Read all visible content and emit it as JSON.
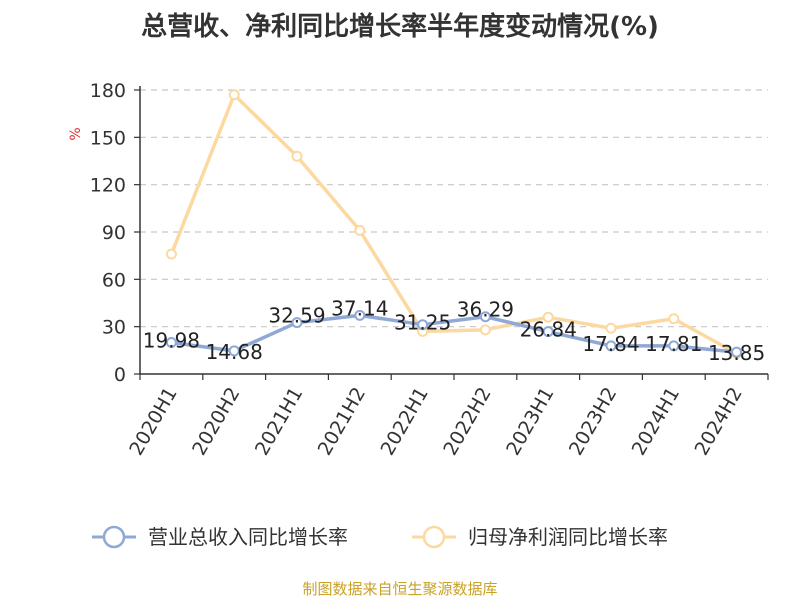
{
  "chart_data": {
    "type": "line",
    "title": "总营收、净利同比增长率半年度变动情况(%)",
    "ylabel": "%",
    "xlabel": "",
    "categories": [
      "2020H1",
      "2020H2",
      "2021H1",
      "2021H2",
      "2022H1",
      "2022H2",
      "2023H1",
      "2023H2",
      "2024H1",
      "2024H2"
    ],
    "ylim": [
      0,
      180
    ],
    "yticks": [
      0,
      30,
      60,
      90,
      120,
      150,
      180
    ],
    "grid": true,
    "legend_position": "bottom",
    "series": [
      {
        "name": "营业总收入同比增长率",
        "color": "#8fa8d6",
        "values": [
          19.98,
          14.68,
          32.59,
          37.14,
          31.25,
          36.29,
          26.84,
          17.84,
          17.81,
          13.85
        ],
        "labels": [
          "19.98",
          "14.68",
          "32.59",
          "37.14",
          "31.25",
          "36.29",
          "26.84",
          "17.84",
          "17.81",
          "13.85"
        ]
      },
      {
        "name": "归母净利润同比增长率",
        "color": "#fcd9a0",
        "values": [
          76,
          177,
          138,
          91,
          27,
          28,
          36,
          29,
          35,
          13
        ]
      }
    ]
  },
  "source_note": "制图数据来自恒生聚源数据库"
}
